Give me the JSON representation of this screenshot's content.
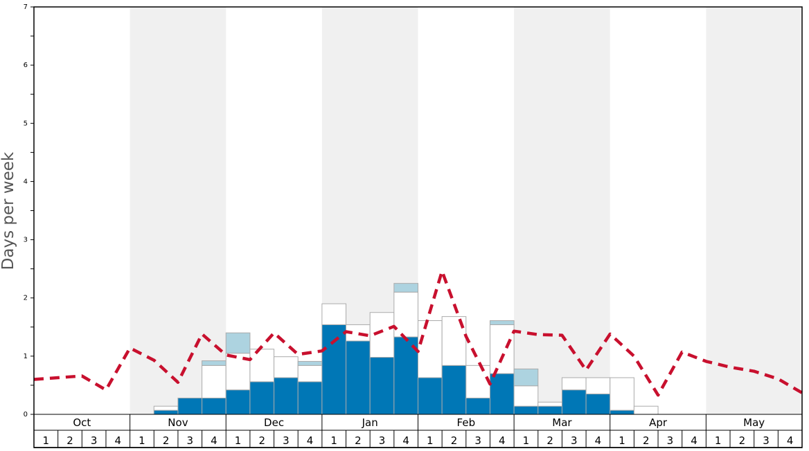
{
  "chart_data": {
    "type": "bar",
    "ylabel": "Days per week",
    "ylim": [
      0,
      7
    ],
    "yticks": [
      0,
      1,
      2,
      3,
      4,
      5,
      6,
      7
    ],
    "months": [
      "Oct",
      "Nov",
      "Dec",
      "Jan",
      "Feb",
      "Mar",
      "Apr",
      "May"
    ],
    "week_labels": [
      "1",
      "2",
      "3",
      "4"
    ],
    "colors": {
      "base": "#0077b6",
      "middle": "#ffffff",
      "top": "#add3e0",
      "line": "#c8102e",
      "band": "#f0f0f0",
      "bar_edge": "#aaaaaa"
    },
    "series": [
      {
        "style": "stacked-bar-base",
        "values": [
          0,
          0,
          0,
          0,
          0,
          0.07,
          0.28,
          0.28,
          0.42,
          0.56,
          0.63,
          0.56,
          1.54,
          1.26,
          0.98,
          1.33,
          0.63,
          0.84,
          0.28,
          0.7,
          0.14,
          0.14,
          0.42,
          0.35,
          0.07,
          0,
          0,
          0,
          0,
          0,
          0,
          0
        ]
      },
      {
        "style": "stacked-bar-middle",
        "values": [
          0,
          0,
          0,
          0,
          0,
          0.07,
          0,
          0.56,
          0.63,
          0.56,
          0.36,
          0.28,
          0.36,
          0.28,
          0.77,
          0.77,
          0.98,
          0.84,
          0.56,
          0.84,
          0.35,
          0.07,
          0.21,
          0.28,
          0.56,
          0.14,
          0,
          0,
          0,
          0,
          0,
          0
        ]
      },
      {
        "style": "stacked-bar-top",
        "values": [
          0,
          0,
          0,
          0,
          0,
          0,
          0,
          0.08,
          0.35,
          0,
          0,
          0.07,
          0,
          0,
          0,
          0.15,
          0,
          0,
          0,
          0.07,
          0.29,
          0,
          0,
          0,
          0,
          0,
          0,
          0,
          0,
          0,
          0,
          0
        ]
      },
      {
        "style": "dashed-line",
        "values": [
          0.6,
          0.63,
          0.66,
          0.42,
          1.14,
          0.93,
          0.55,
          1.38,
          1.02,
          0.94,
          1.4,
          1.03,
          1.09,
          1.42,
          1.35,
          1.51,
          1.08,
          2.46,
          1.34,
          0.52,
          1.43,
          1.37,
          1.36,
          0.76,
          1.38,
          1.0,
          0.33,
          1.07,
          0.91,
          0.81,
          0.74,
          0.61,
          0.37
        ]
      }
    ]
  }
}
